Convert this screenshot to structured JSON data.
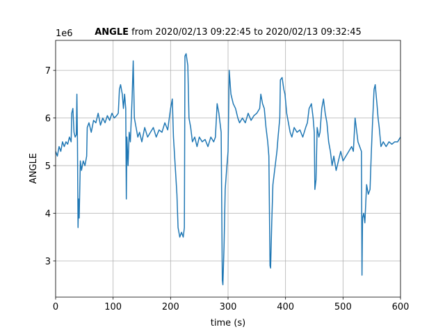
{
  "chart_data": {
    "type": "line",
    "title": {
      "bold": "ANGLE",
      "rest": " from 2020/02/13 09:22:45 to 2020/02/13 09:32:45"
    },
    "y_multiplier": "1e6",
    "xlabel": "time (s)",
    "ylabel": "ANGLE",
    "xlim": [
      0,
      600
    ],
    "ylim": [
      2.24,
      7.63
    ],
    "xticks": [
      0,
      100,
      200,
      300,
      400,
      500,
      600
    ],
    "yticks": [
      3,
      4,
      5,
      6,
      7
    ],
    "grid": true,
    "x": [
      0,
      3,
      6,
      9,
      12,
      15,
      18,
      21,
      24,
      27,
      28,
      30,
      32,
      34,
      36,
      37,
      38,
      39,
      40,
      41,
      43,
      45,
      48,
      51,
      54,
      55,
      58,
      62,
      66,
      70,
      74,
      78,
      82,
      86,
      90,
      94,
      98,
      102,
      106,
      109,
      111,
      113,
      116,
      118,
      120,
      122,
      123,
      124,
      126,
      128,
      130,
      133,
      135,
      137,
      140,
      143,
      146,
      150,
      155,
      160,
      165,
      170,
      175,
      180,
      185,
      190,
      195,
      200,
      203,
      205,
      208,
      211,
      213,
      216,
      219,
      222,
      224,
      225,
      227,
      230,
      232,
      235,
      238,
      242,
      246,
      250,
      255,
      260,
      265,
      270,
      275,
      278,
      281,
      284,
      288,
      290,
      291,
      293,
      295,
      298,
      300,
      302,
      305,
      309,
      313,
      317,
      320,
      325,
      330,
      335,
      340,
      345,
      350,
      355,
      357,
      360,
      363,
      366,
      369,
      371,
      373,
      374,
      376,
      378,
      382,
      385,
      387,
      390,
      391,
      394,
      397,
      399,
      402,
      405,
      408,
      411,
      415,
      420,
      425,
      430,
      435,
      438,
      441,
      445,
      448,
      450,
      451,
      453,
      455,
      458,
      460,
      463,
      466,
      469,
      472,
      475,
      478,
      481,
      484,
      488,
      492,
      496,
      500,
      505,
      510,
      515,
      518,
      521,
      523,
      526,
      529,
      532,
      533,
      534,
      536,
      538,
      541,
      544,
      547,
      549,
      551,
      554,
      556,
      559,
      561,
      563,
      566,
      570,
      575,
      580,
      585,
      590,
      595,
      600
    ],
    "series": [
      {
        "name": "ANGLE",
        "color": "#1f77b4",
        "values": [
          5.3,
          5.2,
          5.4,
          5.3,
          5.5,
          5.4,
          5.5,
          5.45,
          5.6,
          5.5,
          6.1,
          6.2,
          5.7,
          5.6,
          5.65,
          6.5,
          5.5,
          3.7,
          4.3,
          3.9,
          5.1,
          4.9,
          5.1,
          5.0,
          5.2,
          5.8,
          5.9,
          5.7,
          5.95,
          5.9,
          6.1,
          5.85,
          6.0,
          5.9,
          6.05,
          5.95,
          6.1,
          6.0,
          6.05,
          6.1,
          6.6,
          6.7,
          6.5,
          6.2,
          6.5,
          6.2,
          4.3,
          5.6,
          5.0,
          5.7,
          5.5,
          6.4,
          7.2,
          6.0,
          5.8,
          5.6,
          5.7,
          5.5,
          5.8,
          5.6,
          5.7,
          5.8,
          5.6,
          5.75,
          5.7,
          5.9,
          5.75,
          6.2,
          6.4,
          5.6,
          5.0,
          4.4,
          3.7,
          3.5,
          3.6,
          3.5,
          3.7,
          7.3,
          7.35,
          7.1,
          6.0,
          5.8,
          5.5,
          5.6,
          5.4,
          5.6,
          5.5,
          5.55,
          5.4,
          5.6,
          5.5,
          5.6,
          6.3,
          6.1,
          5.7,
          2.6,
          2.5,
          3.3,
          4.5,
          5.0,
          5.3,
          7.0,
          6.5,
          6.3,
          6.2,
          6.0,
          5.9,
          6.0,
          5.9,
          6.1,
          5.95,
          6.05,
          6.1,
          6.2,
          6.5,
          6.3,
          6.2,
          5.8,
          5.5,
          5.2,
          2.9,
          2.85,
          3.8,
          4.6,
          5.0,
          5.3,
          5.6,
          6.0,
          6.8,
          6.85,
          6.6,
          6.5,
          6.1,
          5.9,
          5.7,
          5.6,
          5.8,
          5.7,
          5.75,
          5.6,
          5.8,
          5.9,
          6.2,
          6.3,
          6.0,
          5.7,
          4.5,
          4.7,
          5.8,
          5.6,
          5.7,
          6.2,
          6.4,
          6.1,
          5.9,
          5.5,
          5.3,
          5.0,
          5.2,
          4.9,
          5.1,
          5.3,
          5.1,
          5.2,
          5.3,
          5.4,
          5.3,
          6.0,
          5.8,
          5.5,
          5.4,
          5.3,
          2.7,
          3.9,
          4.0,
          3.8,
          4.6,
          4.4,
          4.5,
          5.2,
          5.8,
          6.6,
          6.7,
          6.3,
          6.0,
          5.8,
          5.4,
          5.5,
          5.4,
          5.5,
          5.45,
          5.5,
          5.5,
          5.6
        ]
      }
    ]
  }
}
